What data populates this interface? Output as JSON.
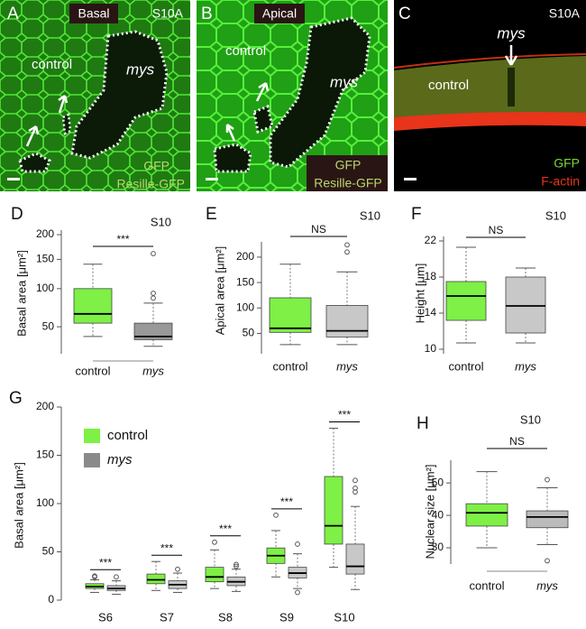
{
  "images": [
    {
      "label": "A",
      "tag": "Basal",
      "corner": "S10A",
      "region_1": "control",
      "region_2": "mys",
      "channel_1": "GFP",
      "channel_2": "Resille-GFP"
    },
    {
      "label": "B",
      "tag": "Apical",
      "region_1": "control",
      "region_2": "mys",
      "channel_1": "GFP",
      "channel_2": "Resille-GFP"
    },
    {
      "label": "C",
      "corner": "S10A",
      "region_2": "mys",
      "region_1": "control",
      "channel_1": "GFP",
      "channel_2": "F-actin"
    }
  ],
  "chart_data": [
    {
      "type": "box",
      "panel": "D",
      "title": "S10",
      "y_label": "Basal area  [μm²]",
      "categories": [
        "control",
        "mys"
      ],
      "colors": [
        "#7ef046",
        "#999999"
      ],
      "scale": "sqrt",
      "boxes": [
        {
          "min": 40,
          "q1": 54,
          "median": 65,
          "q3": 100,
          "max": 141,
          "outliers": []
        },
        {
          "min": 31,
          "q1": 37,
          "median": 40,
          "q3": 54,
          "max": 79,
          "outliers": [
            86,
            93,
            161
          ]
        }
      ],
      "ylim": [
        25,
        210
      ],
      "yticks": [
        50,
        100,
        150,
        200
      ],
      "significance": "***"
    },
    {
      "type": "box",
      "panel": "E",
      "title": "S10",
      "y_label": "Apical area  [μm²]",
      "categories": [
        "control",
        "mys"
      ],
      "colors": [
        "#7ef046",
        "#c8c8c8"
      ],
      "boxes": [
        {
          "min": 28,
          "q1": 52,
          "median": 60,
          "q3": 120,
          "max": 186,
          "outliers": []
        },
        {
          "min": 28,
          "q1": 43,
          "median": 55,
          "q3": 105,
          "max": 171,
          "outliers": [
            210,
            224
          ]
        }
      ],
      "ylim": [
        10,
        230
      ],
      "yticks": [
        50,
        100,
        150,
        200
      ],
      "significance": "NS"
    },
    {
      "type": "box",
      "panel": "F",
      "title": "S10",
      "y_label": "Height  [μm]",
      "categories": [
        "control",
        "mys"
      ],
      "colors": [
        "#7ef046",
        "#c8c8c8"
      ],
      "boxes": [
        {
          "min": 10.7,
          "q1": 13.2,
          "median": 15.9,
          "q3": 17.5,
          "max": 21.3,
          "outliers": []
        },
        {
          "min": 10.7,
          "q1": 11.8,
          "median": 14.8,
          "q3": 18,
          "max": 19,
          "outliers": []
        }
      ],
      "ylim": [
        9.5,
        22.5
      ],
      "yticks": [
        10,
        14,
        18,
        22
      ],
      "significance": "NS"
    },
    {
      "type": "grouped_box",
      "panel": "G",
      "y_label": "Basal area  [μm²]",
      "categories": [
        "S6",
        "S7",
        "S8",
        "S9",
        "S10"
      ],
      "series": [
        {
          "name": "control",
          "color": "#7ef046",
          "legend_color": "#7ef046",
          "boxes": [
            {
              "min": 8,
              "q1": 12,
              "median": 14,
              "q3": 17,
              "max": 21,
              "outliers": [
                24,
                25
              ]
            },
            {
              "min": 10,
              "q1": 17,
              "median": 21,
              "q3": 27,
              "max": 40,
              "outliers": []
            },
            {
              "min": 12,
              "q1": 19,
              "median": 24,
              "q3": 34,
              "max": 52,
              "outliers": [
                60
              ]
            },
            {
              "min": 24,
              "q1": 38,
              "median": 46,
              "q3": 54,
              "max": 72,
              "outliers": [
                88
              ]
            },
            {
              "min": 34,
              "q1": 58,
              "median": 77,
              "q3": 128,
              "max": 178,
              "outliers": []
            }
          ]
        },
        {
          "name": "mys",
          "color": "#c8c8c8",
          "legend_color": "#8a8a8a",
          "boxes": [
            {
              "min": 6,
              "q1": 10,
              "median": 12,
              "q3": 15,
              "max": 20,
              "outliers": [
                24
              ]
            },
            {
              "min": 8,
              "q1": 12,
              "median": 16,
              "q3": 20,
              "max": 28,
              "outliers": [
                32
              ]
            },
            {
              "min": 9,
              "q1": 15,
              "median": 19,
              "q3": 24,
              "max": 32,
              "outliers": [
                35,
                37
              ]
            },
            {
              "min": 12,
              "q1": 23,
              "median": 28,
              "q3": 34,
              "max": 48,
              "outliers": [
                8,
                58
              ]
            },
            {
              "min": 11,
              "q1": 27,
              "median": 35,
              "q3": 58,
              "max": 97,
              "outliers": [
                112,
                116,
                124
              ]
            }
          ]
        }
      ],
      "ylim": [
        0,
        200
      ],
      "yticks": [
        0,
        50,
        100,
        150,
        200
      ],
      "significance": [
        "***",
        "***",
        "***",
        "***",
        "***"
      ]
    },
    {
      "type": "box",
      "panel": "H",
      "title": "S10",
      "y_label": "Nuclear size [μm²]",
      "categories": [
        "control",
        "mys"
      ],
      "colors": [
        "#7ef046",
        "#bbbbbb"
      ],
      "boxes": [
        {
          "min": 30,
          "q1": 36.7,
          "median": 40.8,
          "q3": 43.6,
          "max": 53.5,
          "outliers": []
        },
        {
          "min": 31,
          "q1": 36.2,
          "median": 39.5,
          "q3": 41.4,
          "max": 48.5,
          "outliers": [
            26,
            51
          ]
        }
      ],
      "ylim": [
        25,
        57
      ],
      "yticks": [
        30,
        40,
        50
      ],
      "significance": "NS"
    }
  ]
}
